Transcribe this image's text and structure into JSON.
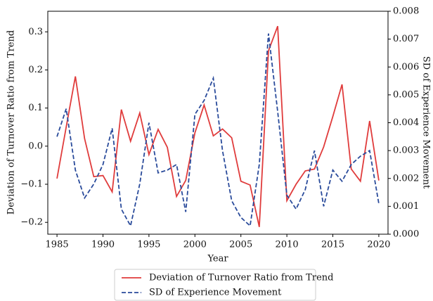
{
  "chart_data": {
    "type": "line",
    "xlabel": "Year",
    "ylabel": "Deviation of Turnover Ratio from Trend",
    "y2label": "SD of Experience Movement",
    "x": [
      1985,
      1986,
      1987,
      1988,
      1989,
      1990,
      1991,
      1992,
      1993,
      1994,
      1995,
      1996,
      1997,
      1998,
      1999,
      2000,
      2001,
      2002,
      2003,
      2004,
      2005,
      2006,
      2007,
      2008,
      2009,
      2010,
      2011,
      2012,
      2013,
      2014,
      2015,
      2016,
      2017,
      2018,
      2019,
      2020
    ],
    "series": [
      {
        "name": "Deviation of Turnover Ratio from Trend",
        "color": "#e03c3c",
        "dash": false,
        "values": [
          -0.085,
          0.05,
          0.183,
          0.02,
          -0.08,
          -0.077,
          -0.12,
          0.096,
          0.013,
          0.087,
          -0.022,
          0.044,
          -0.003,
          -0.132,
          -0.09,
          0.035,
          0.108,
          0.027,
          0.045,
          0.022,
          -0.092,
          -0.102,
          -0.212,
          0.25,
          0.315,
          -0.143,
          -0.1,
          -0.065,
          -0.06,
          -0.002,
          0.078,
          0.162,
          -0.06,
          -0.092,
          0.066,
          -0.09
        ]
      },
      {
        "name": "SD of Experience Movement",
        "color": "#2a4b9b",
        "dash": true,
        "axis": "y2",
        "values": [
          0.0035,
          0.0045,
          0.0023,
          0.0013,
          0.0018,
          0.0025,
          0.0038,
          0.0009,
          0.0003,
          0.0018,
          0.004,
          0.0022,
          0.0023,
          0.0025,
          0.0008,
          0.0043,
          0.0048,
          0.0056,
          0.003,
          0.0012,
          0.0006,
          0.0003,
          0.0025,
          0.0072,
          0.0044,
          0.0014,
          0.0009,
          0.0016,
          0.003,
          0.001,
          0.0023,
          0.0019,
          0.0025,
          0.0028,
          0.003,
          0.0011
        ]
      }
    ],
    "xlim": [
      1984,
      2021
    ],
    "xticks": [
      1985,
      1990,
      1995,
      2000,
      2005,
      2010,
      2015,
      2020
    ],
    "ylim": [
      -0.231,
      0.354
    ],
    "yticks": [
      {
        "value": -0.2,
        "label": "−0.2"
      },
      {
        "value": -0.1,
        "label": "−0.1"
      },
      {
        "value": 0,
        "label": "0.0"
      },
      {
        "value": 0.1,
        "label": "0.1"
      },
      {
        "value": 0.2,
        "label": "0.2"
      },
      {
        "value": 0.3,
        "label": "0.3"
      }
    ],
    "y2lim": [
      0,
      0.008
    ],
    "y2ticks": [
      {
        "value": 0,
        "label": "0.000"
      },
      {
        "value": 0.001,
        "label": "0.001"
      },
      {
        "value": 0.002,
        "label": "0.002"
      },
      {
        "value": 0.003,
        "label": "0.003"
      },
      {
        "value": 0.004,
        "label": "0.004"
      },
      {
        "value": 0.005,
        "label": "0.005"
      },
      {
        "value": 0.006,
        "label": "0.006"
      },
      {
        "value": 0.007,
        "label": "0.007"
      },
      {
        "value": 0.008,
        "label": "0.008"
      }
    ],
    "legend": "bottom"
  }
}
